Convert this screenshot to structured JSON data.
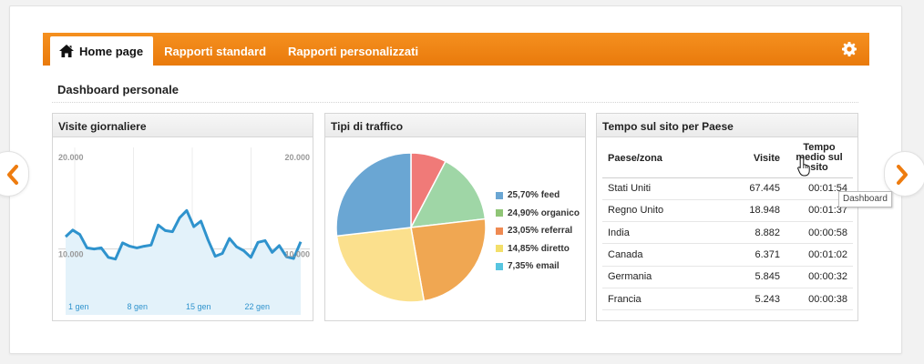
{
  "nav": {
    "tabs": [
      {
        "label": "Home page",
        "active": true,
        "icon": "home-icon"
      },
      {
        "label": "Rapporti standard",
        "active": false
      },
      {
        "label": "Rapporti personalizzati",
        "active": false
      }
    ],
    "settings_icon": "gear-icon",
    "color": "#ef8414"
  },
  "dashboard": {
    "title": "Dashboard personale"
  },
  "widgets": {
    "visits": {
      "title": "Visite giornaliere",
      "chart_data": {
        "type": "area",
        "y_ticks": [
          "20.000",
          "10.000"
        ],
        "x_ticks": [
          "1 gen",
          "8 gen",
          "15 gen",
          "22 gen"
        ],
        "ylim": [
          0,
          30000
        ],
        "values": [
          14000,
          15200,
          14400,
          12000,
          11800,
          12000,
          10300,
          10000,
          12900,
          12300,
          12000,
          12300,
          12500,
          16100,
          15100,
          14900,
          17400,
          18700,
          15800,
          16800,
          13400,
          10500,
          11000,
          13700,
          12200,
          11500,
          10300,
          13000,
          13300,
          11200,
          12400,
          10400,
          10100,
          13100
        ],
        "line_color": "#2f93cd",
        "fill_color": "#e3f2fa"
      }
    },
    "traffic": {
      "title": "Tipi di traffico",
      "chart_data": {
        "type": "pie",
        "slices": [
          {
            "label": "25,70% feed",
            "value": 25.7,
            "color": "#6aa6d3"
          },
          {
            "label": "24,90% organico",
            "value": 24.9,
            "color": "#8fc576"
          },
          {
            "label": "23,05% referral",
            "value": 23.05,
            "color": "#ef8a52"
          },
          {
            "label": "14,85% diretto",
            "value": 14.85,
            "color": "#f3df6a"
          },
          {
            "label": "7,35% email",
            "value": 7.35,
            "color": "#57c5e0"
          }
        ],
        "pie_order": [
          {
            "value": 7.35,
            "color": "#f07a78"
          },
          {
            "value": 14.85,
            "color": "#9fd6a6"
          },
          {
            "value": 23.05,
            "color": "#f0a752"
          },
          {
            "value": 24.9,
            "color": "#fbe08d"
          },
          {
            "value": 25.7,
            "color": "#6aa6d3"
          }
        ]
      }
    },
    "time_by_country": {
      "title": "Tempo sul sito per Paese",
      "columns": {
        "country": "Paese/zona",
        "visits": "Visite",
        "time": "Tempo medio sul sito"
      },
      "rows": [
        {
          "country": "Stati Uniti",
          "visits": "67.445",
          "time": "00:01:54"
        },
        {
          "country": "Regno Unito",
          "visits": "18.948",
          "time": "00:01:37"
        },
        {
          "country": "India",
          "visits": "8.882",
          "time": "00:00:58"
        },
        {
          "country": "Canada",
          "visits": "6.371",
          "time": "00:01:02"
        },
        {
          "country": "Germania",
          "visits": "5.845",
          "time": "00:00:32"
        },
        {
          "country": "Francia",
          "visits": "5.243",
          "time": "00:00:38"
        }
      ]
    }
  },
  "carousel": {
    "prev_icon": "chevron-left-icon",
    "next_icon": "chevron-right-icon",
    "arrow_color": "#ee7c0f"
  },
  "tooltip": {
    "text": "Dashboard"
  }
}
